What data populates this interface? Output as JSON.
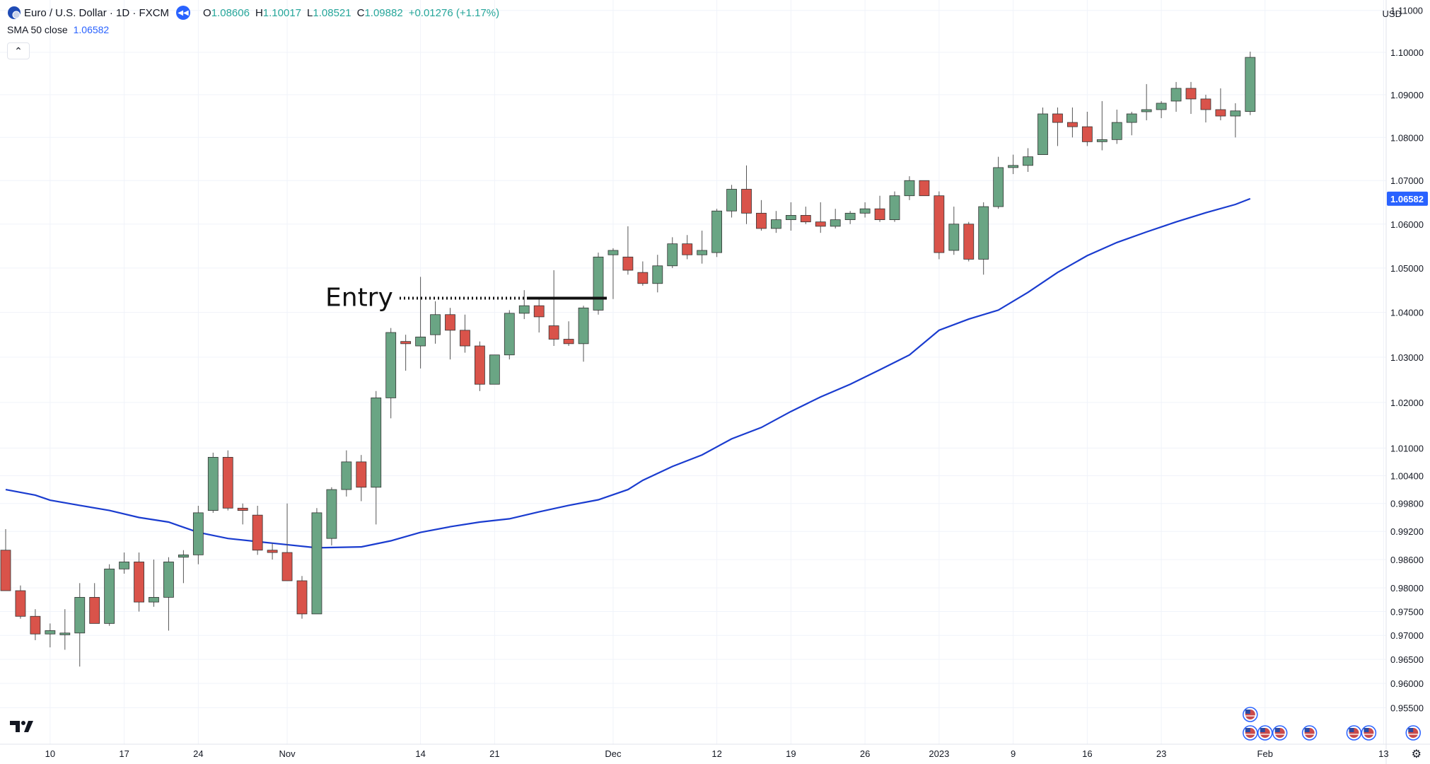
{
  "legend": {
    "symbol": "Euro / U.S. Dollar · 1D · FXCM",
    "o_label": "O",
    "o_value": "1.08606",
    "h_label": "H",
    "h_value": "1.10017",
    "l_label": "L",
    "l_value": "1.08521",
    "c_label": "C",
    "c_value": "1.09882",
    "change": "+0.01276 (+1.17%)",
    "sma_label": "SMA 50 close",
    "sma_value": "1.06582"
  },
  "axis": {
    "currency": "USD",
    "last_price_label": "1.06582"
  },
  "annotation": {
    "entry_label": "Entry",
    "entry_price": 1.0432
  },
  "colors": {
    "up": "#6aa584",
    "down": "#d9534a",
    "sma": "#1a3ccf",
    "badge": "#2962ff",
    "grid": "#f0f3fa"
  },
  "icons": {
    "symbol": "euro-flag-icon",
    "rewind": "rewind-icon",
    "logo": "tradingview-logo-icon",
    "settings": "gear-icon",
    "event": "us-flag-icon"
  },
  "chart_data": {
    "type": "candlestick",
    "title": "Euro / U.S. Dollar · 1D · FXCM",
    "ylim": [
      0.9475,
      1.1125
    ],
    "scale": "log",
    "grid": true,
    "y_ticks": [
      "1.11000",
      "1.10000",
      "1.09000",
      "1.08000",
      "1.07000",
      "1.06000",
      "1.05000",
      "1.04000",
      "1.03000",
      "1.02000",
      "1.01000",
      "1.00400",
      "0.99800",
      "0.99200",
      "0.98600",
      "0.98000",
      "0.97500",
      "0.97000",
      "0.96500",
      "0.96000",
      "0.95500"
    ],
    "x_ticks": [
      {
        "label": "10",
        "date": "2022-10-10"
      },
      {
        "label": "17",
        "date": "2022-10-17"
      },
      {
        "label": "24",
        "date": "2022-10-24"
      },
      {
        "label": "Nov",
        "date": "2022-11-01"
      },
      {
        "label": "14",
        "date": "2022-11-14"
      },
      {
        "label": "21",
        "date": "2022-11-21"
      },
      {
        "label": "Dec",
        "date": "2022-12-01"
      },
      {
        "label": "12",
        "date": "2022-12-12"
      },
      {
        "label": "19",
        "date": "2022-12-19"
      },
      {
        "label": "26",
        "date": "2022-12-26"
      },
      {
        "label": "2023",
        "date": "2023-01-02"
      },
      {
        "label": "9",
        "date": "2023-01-09"
      },
      {
        "label": "16",
        "date": "2023-01-16"
      },
      {
        "label": "23",
        "date": "2023-01-23"
      },
      {
        "label": "Feb",
        "date": "2023-02-01"
      },
      {
        "label": "13",
        "date": "2023-02-13"
      }
    ],
    "candles": [
      {
        "date": "2022-10-05",
        "o": 0.988,
        "h": 0.9925,
        "l": 0.98,
        "c": 0.9794
      },
      {
        "date": "2022-10-06",
        "o": 0.9794,
        "h": 0.9805,
        "l": 0.9735,
        "c": 0.974
      },
      {
        "date": "2022-10-07",
        "o": 0.974,
        "h": 0.9755,
        "l": 0.969,
        "c": 0.9703
      },
      {
        "date": "2022-10-10",
        "o": 0.9703,
        "h": 0.9725,
        "l": 0.9675,
        "c": 0.971
      },
      {
        "date": "2022-10-11",
        "o": 0.9705,
        "h": 0.9755,
        "l": 0.967,
        "c": 0.9705
      },
      {
        "date": "2022-10-12",
        "o": 0.9705,
        "h": 0.981,
        "l": 0.9635,
        "c": 0.978
      },
      {
        "date": "2022-10-13",
        "o": 0.978,
        "h": 0.981,
        "l": 0.973,
        "c": 0.9725
      },
      {
        "date": "2022-10-14",
        "o": 0.9725,
        "h": 0.985,
        "l": 0.972,
        "c": 0.984
      },
      {
        "date": "2022-10-17",
        "o": 0.984,
        "h": 0.9875,
        "l": 0.983,
        "c": 0.9855
      },
      {
        "date": "2022-10-18",
        "o": 0.9855,
        "h": 0.9875,
        "l": 0.975,
        "c": 0.977
      },
      {
        "date": "2022-10-19",
        "o": 0.977,
        "h": 0.986,
        "l": 0.976,
        "c": 0.978
      },
      {
        "date": "2022-10-20",
        "o": 0.978,
        "h": 0.9865,
        "l": 0.971,
        "c": 0.9855
      },
      {
        "date": "2022-10-21",
        "o": 0.9865,
        "h": 0.988,
        "l": 0.981,
        "c": 0.987
      },
      {
        "date": "2022-10-24",
        "o": 0.987,
        "h": 0.9975,
        "l": 0.985,
        "c": 0.996
      },
      {
        "date": "2022-10-25",
        "o": 0.9965,
        "h": 1.009,
        "l": 0.996,
        "c": 1.008
      },
      {
        "date": "2022-10-26",
        "o": 1.008,
        "h": 1.0095,
        "l": 0.9965,
        "c": 0.997
      },
      {
        "date": "2022-10-27",
        "o": 0.997,
        "h": 0.998,
        "l": 0.9935,
        "c": 0.9965
      },
      {
        "date": "2022-10-28",
        "o": 0.9955,
        "h": 0.9975,
        "l": 0.987,
        "c": 0.988
      },
      {
        "date": "2022-10-31",
        "o": 0.988,
        "h": 0.9895,
        "l": 0.986,
        "c": 0.9875
      },
      {
        "date": "2022-11-01",
        "o": 0.9875,
        "h": 0.998,
        "l": 0.982,
        "c": 0.9815
      },
      {
        "date": "2022-11-02",
        "o": 0.9815,
        "h": 0.9825,
        "l": 0.9735,
        "c": 0.9745
      },
      {
        "date": "2022-11-03",
        "o": 0.9745,
        "h": 0.997,
        "l": 0.9745,
        "c": 0.996
      },
      {
        "date": "2022-11-04",
        "o": 0.9905,
        "h": 1.0015,
        "l": 0.989,
        "c": 1.001
      },
      {
        "date": "2022-11-07",
        "o": 1.001,
        "h": 1.0095,
        "l": 0.9995,
        "c": 1.007
      },
      {
        "date": "2022-11-08",
        "o": 1.007,
        "h": 1.0085,
        "l": 0.9985,
        "c": 1.0015
      },
      {
        "date": "2022-11-09",
        "o": 1.0015,
        "h": 1.0225,
        "l": 0.9935,
        "c": 1.021
      },
      {
        "date": "2022-11-10",
        "o": 1.021,
        "h": 1.0365,
        "l": 1.0165,
        "c": 1.0355
      },
      {
        "date": "2022-11-11",
        "o": 1.0335,
        "h": 1.035,
        "l": 1.027,
        "c": 1.033
      },
      {
        "date": "2022-11-14",
        "o": 1.0325,
        "h": 1.048,
        "l": 1.0275,
        "c": 1.0345
      },
      {
        "date": "2022-11-15",
        "o": 1.035,
        "h": 1.0425,
        "l": 1.033,
        "c": 1.0395
      },
      {
        "date": "2022-11-16",
        "o": 1.0395,
        "h": 1.041,
        "l": 1.0295,
        "c": 1.036
      },
      {
        "date": "2022-11-17",
        "o": 1.036,
        "h": 1.0395,
        "l": 1.031,
        "c": 1.0325
      },
      {
        "date": "2022-11-18",
        "o": 1.0325,
        "h": 1.0335,
        "l": 1.0225,
        "c": 1.024
      },
      {
        "date": "2022-11-21",
        "o": 1.024,
        "h": 1.0305,
        "l": 1.024,
        "c": 1.0305
      },
      {
        "date": "2022-11-22",
        "o": 1.0305,
        "h": 1.0405,
        "l": 1.0295,
        "c": 1.0398
      },
      {
        "date": "2022-11-23",
        "o": 1.0398,
        "h": 1.045,
        "l": 1.0385,
        "c": 1.0415
      },
      {
        "date": "2022-11-24",
        "o": 1.0415,
        "h": 1.0435,
        "l": 1.0355,
        "c": 1.039
      },
      {
        "date": "2022-11-25",
        "o": 1.037,
        "h": 1.0495,
        "l": 1.0325,
        "c": 1.034
      },
      {
        "date": "2022-11-28",
        "o": 1.034,
        "h": 1.038,
        "l": 1.0325,
        "c": 1.033
      },
      {
        "date": "2022-11-29",
        "o": 1.033,
        "h": 1.0415,
        "l": 1.029,
        "c": 1.041
      },
      {
        "date": "2022-11-30",
        "o": 1.0405,
        "h": 1.0535,
        "l": 1.0395,
        "c": 1.0525
      },
      {
        "date": "2022-12-01",
        "o": 1.053,
        "h": 1.0545,
        "l": 1.043,
        "c": 1.054
      },
      {
        "date": "2022-12-02",
        "o": 1.0525,
        "h": 1.0595,
        "l": 1.0485,
        "c": 1.0495
      },
      {
        "date": "2022-12-05",
        "o": 1.049,
        "h": 1.0515,
        "l": 1.046,
        "c": 1.0465
      },
      {
        "date": "2022-12-06",
        "o": 1.0465,
        "h": 1.053,
        "l": 1.0445,
        "c": 1.0505
      },
      {
        "date": "2022-12-07",
        "o": 1.0505,
        "h": 1.057,
        "l": 1.05,
        "c": 1.0555
      },
      {
        "date": "2022-12-08",
        "o": 1.0555,
        "h": 1.0575,
        "l": 1.052,
        "c": 1.053
      },
      {
        "date": "2022-12-09",
        "o": 1.053,
        "h": 1.0585,
        "l": 1.051,
        "c": 1.054
      },
      {
        "date": "2022-12-12",
        "o": 1.0535,
        "h": 1.0635,
        "l": 1.0525,
        "c": 1.063
      },
      {
        "date": "2022-12-13",
        "o": 1.063,
        "h": 1.069,
        "l": 1.0615,
        "c": 1.068
      },
      {
        "date": "2022-12-14",
        "o": 1.068,
        "h": 1.0735,
        "l": 1.06,
        "c": 1.0625
      },
      {
        "date": "2022-12-15",
        "o": 1.0625,
        "h": 1.0655,
        "l": 1.0585,
        "c": 1.059
      },
      {
        "date": "2022-12-16",
        "o": 1.059,
        "h": 1.063,
        "l": 1.058,
        "c": 1.061
      },
      {
        "date": "2022-12-19",
        "o": 1.061,
        "h": 1.065,
        "l": 1.0585,
        "c": 1.062
      },
      {
        "date": "2022-12-20",
        "o": 1.062,
        "h": 1.064,
        "l": 1.06,
        "c": 1.0605
      },
      {
        "date": "2022-12-21",
        "o": 1.0605,
        "h": 1.065,
        "l": 1.058,
        "c": 1.0595
      },
      {
        "date": "2022-12-22",
        "o": 1.0595,
        "h": 1.0635,
        "l": 1.059,
        "c": 1.061
      },
      {
        "date": "2022-12-23",
        "o": 1.061,
        "h": 1.063,
        "l": 1.06,
        "c": 1.0625
      },
      {
        "date": "2022-12-26",
        "o": 1.0625,
        "h": 1.065,
        "l": 1.0615,
        "c": 1.0635
      },
      {
        "date": "2022-12-27",
        "o": 1.0635,
        "h": 1.0665,
        "l": 1.0605,
        "c": 1.061
      },
      {
        "date": "2022-12-28",
        "o": 1.061,
        "h": 1.0675,
        "l": 1.0605,
        "c": 1.0665
      },
      {
        "date": "2022-12-29",
        "o": 1.0665,
        "h": 1.071,
        "l": 1.0655,
        "c": 1.07
      },
      {
        "date": "2022-12-30",
        "o": 1.07,
        "h": 1.07,
        "l": 1.0665,
        "c": 1.0665
      },
      {
        "date": "2023-01-02",
        "o": 1.0665,
        "h": 1.0675,
        "l": 1.052,
        "c": 1.0535
      },
      {
        "date": "2023-01-03",
        "o": 1.054,
        "h": 1.064,
        "l": 1.053,
        "c": 1.06
      },
      {
        "date": "2023-01-04",
        "o": 1.06,
        "h": 1.0605,
        "l": 1.0515,
        "c": 1.052
      },
      {
        "date": "2023-01-05",
        "o": 1.052,
        "h": 1.065,
        "l": 1.0485,
        "c": 1.064
      },
      {
        "date": "2023-01-06",
        "o": 1.064,
        "h": 1.0755,
        "l": 1.0635,
        "c": 1.073
      },
      {
        "date": "2023-01-09",
        "o": 1.073,
        "h": 1.076,
        "l": 1.0715,
        "c": 1.0735
      },
      {
        "date": "2023-01-10",
        "o": 1.0735,
        "h": 1.0775,
        "l": 1.072,
        "c": 1.0755
      },
      {
        "date": "2023-01-11",
        "o": 1.076,
        "h": 1.087,
        "l": 1.076,
        "c": 1.0855
      },
      {
        "date": "2023-01-12",
        "o": 1.0855,
        "h": 1.087,
        "l": 1.078,
        "c": 1.0835
      },
      {
        "date": "2023-01-13",
        "o": 1.0835,
        "h": 1.087,
        "l": 1.08,
        "c": 1.0825
      },
      {
        "date": "2023-01-16",
        "o": 1.0825,
        "h": 1.086,
        "l": 1.078,
        "c": 1.079
      },
      {
        "date": "2023-01-17",
        "o": 1.079,
        "h": 1.0885,
        "l": 1.077,
        "c": 1.0795
      },
      {
        "date": "2023-01-18",
        "o": 1.0795,
        "h": 1.0865,
        "l": 1.0785,
        "c": 1.0835
      },
      {
        "date": "2023-01-19",
        "o": 1.0835,
        "h": 1.086,
        "l": 1.0805,
        "c": 1.0855
      },
      {
        "date": "2023-01-20",
        "o": 1.086,
        "h": 1.0925,
        "l": 1.084,
        "c": 1.0865
      },
      {
        "date": "2023-01-23",
        "o": 1.0865,
        "h": 1.0885,
        "l": 1.0845,
        "c": 1.088
      },
      {
        "date": "2023-01-24",
        "o": 1.0885,
        "h": 1.093,
        "l": 1.086,
        "c": 1.0915
      },
      {
        "date": "2023-01-25",
        "o": 1.0915,
        "h": 1.093,
        "l": 1.0855,
        "c": 1.089
      },
      {
        "date": "2023-01-26",
        "o": 1.089,
        "h": 1.09,
        "l": 1.0835,
        "c": 1.0865
      },
      {
        "date": "2023-01-27",
        "o": 1.0865,
        "h": 1.0915,
        "l": 1.084,
        "c": 1.085
      },
      {
        "date": "2023-01-30",
        "o": 1.085,
        "h": 1.088,
        "l": 1.08,
        "c": 1.0862
      },
      {
        "date": "2023-01-31",
        "o": 1.08606,
        "h": 1.10017,
        "l": 1.08521,
        "c": 1.09882
      }
    ],
    "series": [
      {
        "name": "SMA 50 close",
        "points": [
          {
            "date": "2022-10-05",
            "v": 1.001
          },
          {
            "date": "2022-10-07",
            "v": 0.9998
          },
          {
            "date": "2022-10-10",
            "v": 0.9987
          },
          {
            "date": "2022-10-12",
            "v": 0.9976
          },
          {
            "date": "2022-10-14",
            "v": 0.9965
          },
          {
            "date": "2022-10-18",
            "v": 0.995
          },
          {
            "date": "2022-10-20",
            "v": 0.994
          },
          {
            "date": "2022-10-24",
            "v": 0.9918
          },
          {
            "date": "2022-10-26",
            "v": 0.9905
          },
          {
            "date": "2022-10-31",
            "v": 0.9895
          },
          {
            "date": "2022-11-03",
            "v": 0.9885
          },
          {
            "date": "2022-11-08",
            "v": 0.9887
          },
          {
            "date": "2022-11-10",
            "v": 0.99
          },
          {
            "date": "2022-11-14",
            "v": 0.9918
          },
          {
            "date": "2022-11-16",
            "v": 0.993
          },
          {
            "date": "2022-11-18",
            "v": 0.994
          },
          {
            "date": "2022-11-22",
            "v": 0.9947
          },
          {
            "date": "2022-11-24",
            "v": 0.9962
          },
          {
            "date": "2022-11-28",
            "v": 0.9976
          },
          {
            "date": "2022-11-30",
            "v": 0.9988
          },
          {
            "date": "2022-12-02",
            "v": 1.001
          },
          {
            "date": "2022-12-05",
            "v": 1.003
          },
          {
            "date": "2022-12-07",
            "v": 1.006
          },
          {
            "date": "2022-12-09",
            "v": 1.0085
          },
          {
            "date": "2022-12-13",
            "v": 1.012
          },
          {
            "date": "2022-12-15",
            "v": 1.0145
          },
          {
            "date": "2022-12-19",
            "v": 1.018
          },
          {
            "date": "2022-12-21",
            "v": 1.0212
          },
          {
            "date": "2022-12-23",
            "v": 1.024
          },
          {
            "date": "2022-12-27",
            "v": 1.0272
          },
          {
            "date": "2022-12-29",
            "v": 1.0305
          },
          {
            "date": "2023-01-02",
            "v": 1.036
          },
          {
            "date": "2023-01-04",
            "v": 1.0385
          },
          {
            "date": "2023-01-06",
            "v": 1.0405
          },
          {
            "date": "2023-01-10",
            "v": 1.0445
          },
          {
            "date": "2023-01-12",
            "v": 1.049
          },
          {
            "date": "2023-01-16",
            "v": 1.0528
          },
          {
            "date": "2023-01-18",
            "v": 1.0558
          },
          {
            "date": "2023-01-20",
            "v": 1.0582
          },
          {
            "date": "2023-01-24",
            "v": 1.0605
          },
          {
            "date": "2023-01-26",
            "v": 1.0626
          },
          {
            "date": "2023-01-30",
            "v": 1.0645
          },
          {
            "date": "2023-01-31",
            "v": 1.06582
          }
        ]
      }
    ],
    "events": [
      "2023-01-31",
      "2023-01-31",
      "2023-02-01",
      "2023-02-02",
      "2023-02-06",
      "2023-02-09",
      "2023-02-10",
      "2023-02-15"
    ]
  }
}
